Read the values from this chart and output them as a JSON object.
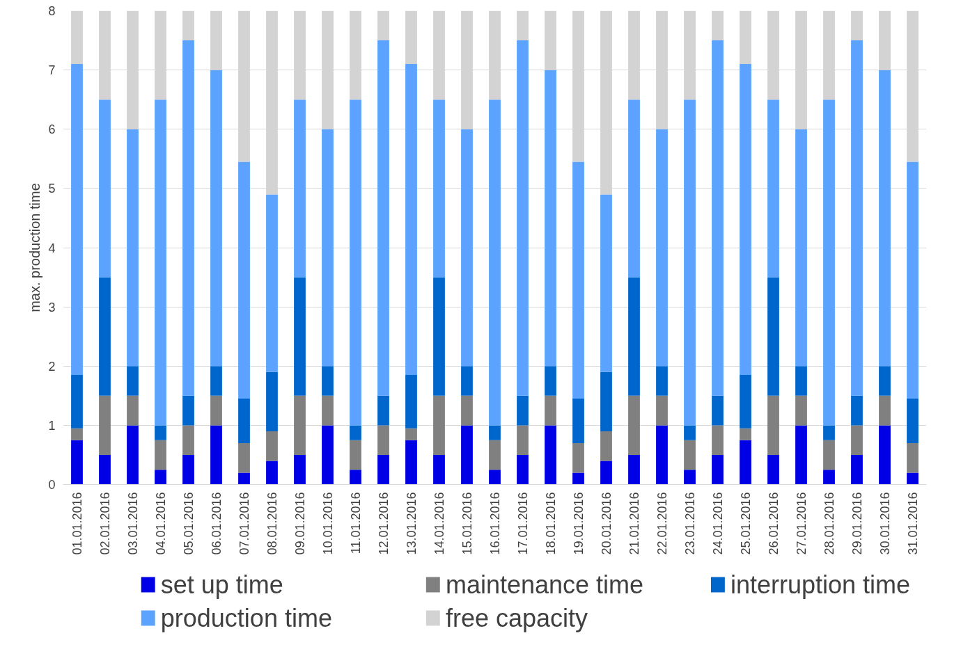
{
  "chart_data": {
    "type": "bar",
    "stacked": true,
    "ylabel": "max. production time",
    "categories": [
      "01.01.2016",
      "02.01.2016",
      "03.01.2016",
      "04.01.2016",
      "05.01.2016",
      "06.01.2016",
      "07.01.2016",
      "08.01.2016",
      "09.01.2016",
      "10.01.2016",
      "11.01.2016",
      "12.01.2016",
      "13.01.2016",
      "14.01.2016",
      "15.01.2016",
      "16.01.2016",
      "17.01.2016",
      "18.01.2016",
      "19.01.2016",
      "20.01.2016",
      "21.01.2016",
      "22.01.2016",
      "23.01.2016",
      "24.01.2016",
      "25.01.2016",
      "26.01.2016",
      "27.01.2016",
      "28.01.2016",
      "29.01.2016",
      "30.01.2016",
      "31.01.2016"
    ],
    "series": [
      {
        "name": "set up time",
        "color": "#0000e6",
        "values": [
          0.75,
          0.5,
          1,
          0.25,
          0.5,
          1,
          0.2,
          0.4,
          0.5,
          1,
          0.25,
          0.5,
          0.75,
          0.5,
          1,
          0.25,
          0.5,
          1,
          0.2,
          0.4,
          0.5,
          1,
          0.25,
          0.5,
          0.75,
          0.5,
          1,
          0.25,
          0.5,
          1,
          0.2
        ]
      },
      {
        "name": "maintenance time",
        "color": "#808080",
        "values": [
          0.2,
          1,
          0.5,
          0.5,
          0.5,
          0.5,
          0.5,
          0.5,
          1,
          0.5,
          0.5,
          0.5,
          0.2,
          1,
          0.5,
          0.5,
          0.5,
          0.5,
          0.5,
          0.5,
          1,
          0.5,
          0.5,
          0.5,
          0.2,
          1,
          0.5,
          0.5,
          0.5,
          0.5,
          0.5
        ]
      },
      {
        "name": "interruption time",
        "color": "#0066cc",
        "values": [
          0.9,
          2,
          0.5,
          0.25,
          0.5,
          0.5,
          0.75,
          1,
          2,
          0.5,
          0.25,
          0.5,
          0.9,
          2,
          0.5,
          0.25,
          0.5,
          0.5,
          0.75,
          1,
          2,
          0.5,
          0.25,
          0.5,
          0.9,
          2,
          0.5,
          0.25,
          0.5,
          0.5,
          0.75
        ]
      },
      {
        "name": "production time",
        "color": "#5ba3ff",
        "values": [
          5.25,
          3,
          4,
          5.5,
          6,
          5,
          4,
          3,
          3,
          4,
          5.5,
          6,
          5.25,
          3,
          4,
          5.5,
          6,
          5,
          4,
          3,
          3,
          4,
          5.5,
          6,
          5.25,
          3,
          4,
          5.5,
          6,
          5,
          4
        ]
      },
      {
        "name": "free capacity",
        "color": "#d3d3d3",
        "values": [
          0.9,
          1.5,
          2,
          1.5,
          0.5,
          1,
          2.55,
          3.1,
          1.5,
          2,
          1.5,
          0.5,
          0.9,
          1.5,
          2,
          1.5,
          0.5,
          1,
          2.55,
          3.1,
          1.5,
          2,
          1.5,
          0.5,
          0.9,
          1.5,
          2,
          1.5,
          0.5,
          1,
          2.55
        ]
      }
    ],
    "ylim": [
      0,
      8
    ],
    "yticks": [
      0,
      1,
      2,
      3,
      4,
      5,
      6,
      7,
      8
    ],
    "grid": "y",
    "legend": "bottom"
  }
}
